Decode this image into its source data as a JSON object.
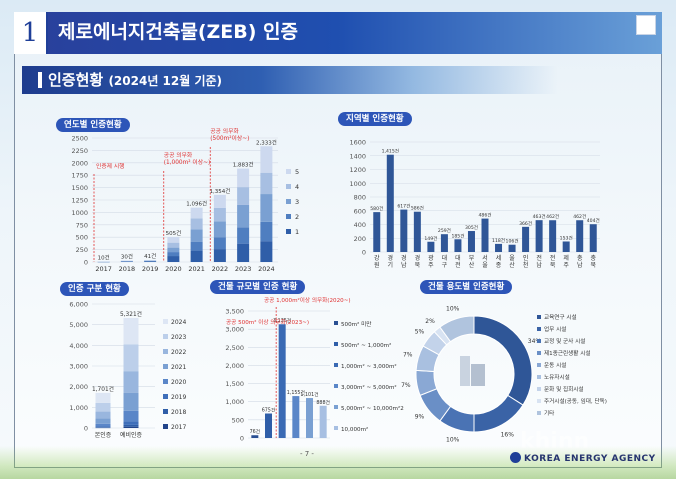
{
  "header": {
    "number": "1",
    "title": "제로에너지건축물(ZEB) 인증"
  },
  "section": {
    "title": "인증현황",
    "subtitle": "(2024년 12월 기준)"
  },
  "footer": {
    "page": "- 7 -",
    "org": "KOREA ENERGY AGENCY",
    "watermark": "khinn"
  },
  "colors": {
    "c1": "#2f5ea8",
    "c2": "#4f7ec0",
    "c3": "#7aa0d2",
    "c4": "#a7bfe2",
    "c5": "#cdd9ef",
    "accent": "#2d55b8",
    "red": "#e03030"
  },
  "chart_data": [
    {
      "id": "yearly",
      "type": "bar",
      "title": "연도별 인증현황",
      "categories": [
        "2017",
        "2018",
        "2019",
        "2020",
        "2021",
        "2022",
        "2023",
        "2024"
      ],
      "data_labels": [
        "10건",
        "30건",
        "41건",
        "505건",
        "1,096건",
        "1,354건",
        "1,883건",
        "2,333건"
      ],
      "ylim": [
        0,
        2500
      ],
      "yticks": [
        0,
        250,
        500,
        750,
        1000,
        1250,
        1500,
        1750,
        2000,
        2250,
        2500
      ],
      "legend": [
        "5",
        "4",
        "3",
        "2",
        "1"
      ],
      "series": [
        {
          "name": "1",
          "values": [
            2,
            8,
            10,
            120,
            230,
            260,
            370,
            420
          ]
        },
        {
          "name": "2",
          "values": [
            2,
            6,
            8,
            80,
            180,
            240,
            330,
            390
          ]
        },
        {
          "name": "3",
          "values": [
            2,
            6,
            8,
            90,
            250,
            320,
            450,
            560
          ]
        },
        {
          "name": "4",
          "values": [
            2,
            5,
            7,
            100,
            220,
            270,
            360,
            430
          ]
        },
        {
          "name": "5",
          "values": [
            2,
            5,
            8,
            115,
            216,
            264,
            373,
            533
          ]
        }
      ],
      "annotations": [
        "인증제 시행",
        "공공 의무화\n(1,000m² 이상~)",
        "공공 의무화\n(500m²이상~)"
      ]
    },
    {
      "id": "region",
      "type": "bar",
      "title": "지역별 인증현황",
      "categories": [
        "강원",
        "경기",
        "경남",
        "경북",
        "광주",
        "대구",
        "대전",
        "부산",
        "서울",
        "세종",
        "울산",
        "인천",
        "전남",
        "전북",
        "제주",
        "충남",
        "충북"
      ],
      "values": [
        580,
        1415,
        617,
        586,
        149,
        259,
        185,
        305,
        486,
        118,
        106,
        366,
        463,
        462,
        153,
        462,
        404
      ],
      "data_labels": [
        "580건",
        "1,415건",
        "617건",
        "586건",
        "149건",
        "259건",
        "185건",
        "305건",
        "486건",
        "118건",
        "106건",
        "366건",
        "463건",
        "462건",
        "153건",
        "462건",
        "404건"
      ],
      "ylim": [
        0,
        1600
      ],
      "yticks": [
        0,
        200,
        400,
        600,
        800,
        1000,
        1200,
        1400,
        1600
      ]
    },
    {
      "id": "type",
      "type": "bar",
      "title": "인증 구분 현황",
      "categories": [
        "본인증",
        "예비인증"
      ],
      "data_labels": [
        "1,701건",
        "5,321건"
      ],
      "ylim": [
        0,
        6000
      ],
      "yticks": [
        0,
        1000,
        2000,
        3000,
        4000,
        5000,
        6000
      ],
      "legend": [
        "2024",
        "2023",
        "2022",
        "2021",
        "2020",
        "2019",
        "2018",
        "2017"
      ],
      "series": [
        {
          "name": "2017",
          "values": [
            10,
            60
          ]
        },
        {
          "name": "2018",
          "values": [
            25,
            90
          ]
        },
        {
          "name": "2019",
          "values": [
            40,
            180
          ]
        },
        {
          "name": "2020",
          "values": [
            130,
            500
          ]
        },
        {
          "name": "2021",
          "values": [
            260,
            880
          ]
        },
        {
          "name": "2022",
          "values": [
            330,
            1040
          ]
        },
        {
          "name": "2023",
          "values": [
            420,
            1300
          ]
        },
        {
          "name": "2024",
          "values": [
            486,
            1271
          ]
        }
      ]
    },
    {
      "id": "scale",
      "type": "bar",
      "title": "건물 규모별 인증 현황",
      "categories": [
        "500m² 미만",
        "500m² ~ 1,000m²",
        "1,000m² ~ 3,000m²",
        "3,000m² ~ 5,000m²",
        "5,000m² ~ 10,000m²2",
        "10,000m²"
      ],
      "values": [
        76,
        675,
        3135,
        1155,
        1101,
        888
      ],
      "data_labels": [
        "76건",
        "675건",
        "3,135건",
        "1,155건",
        "1,101건",
        "888건"
      ],
      "ylim": [
        0,
        3500
      ],
      "yticks": [
        0,
        500,
        1000,
        1500,
        2000,
        2500,
        3000,
        3500
      ],
      "annotations": [
        "공공 500m² 이상 의무화(2023~)",
        "공공 1,000m²이상 의무화(2020~)"
      ]
    },
    {
      "id": "use",
      "type": "pie",
      "title": "건물 용도별 인증현황",
      "labels": [
        "교육연구 시설",
        "업무 시설",
        "교정 및 군사 시설",
        "제1종근린생활 시설",
        "운동 시설",
        "노유자시설",
        "문화 및 집회시설",
        "주거시설(공동, 임대, 단독)",
        "기타"
      ],
      "values": [
        34,
        16,
        10,
        9,
        7,
        7,
        5,
        2,
        10
      ],
      "data_labels": [
        "34%",
        "16%",
        "10%",
        "9%",
        "7%",
        "7%",
        "5%",
        "2%",
        "10%"
      ]
    }
  ]
}
